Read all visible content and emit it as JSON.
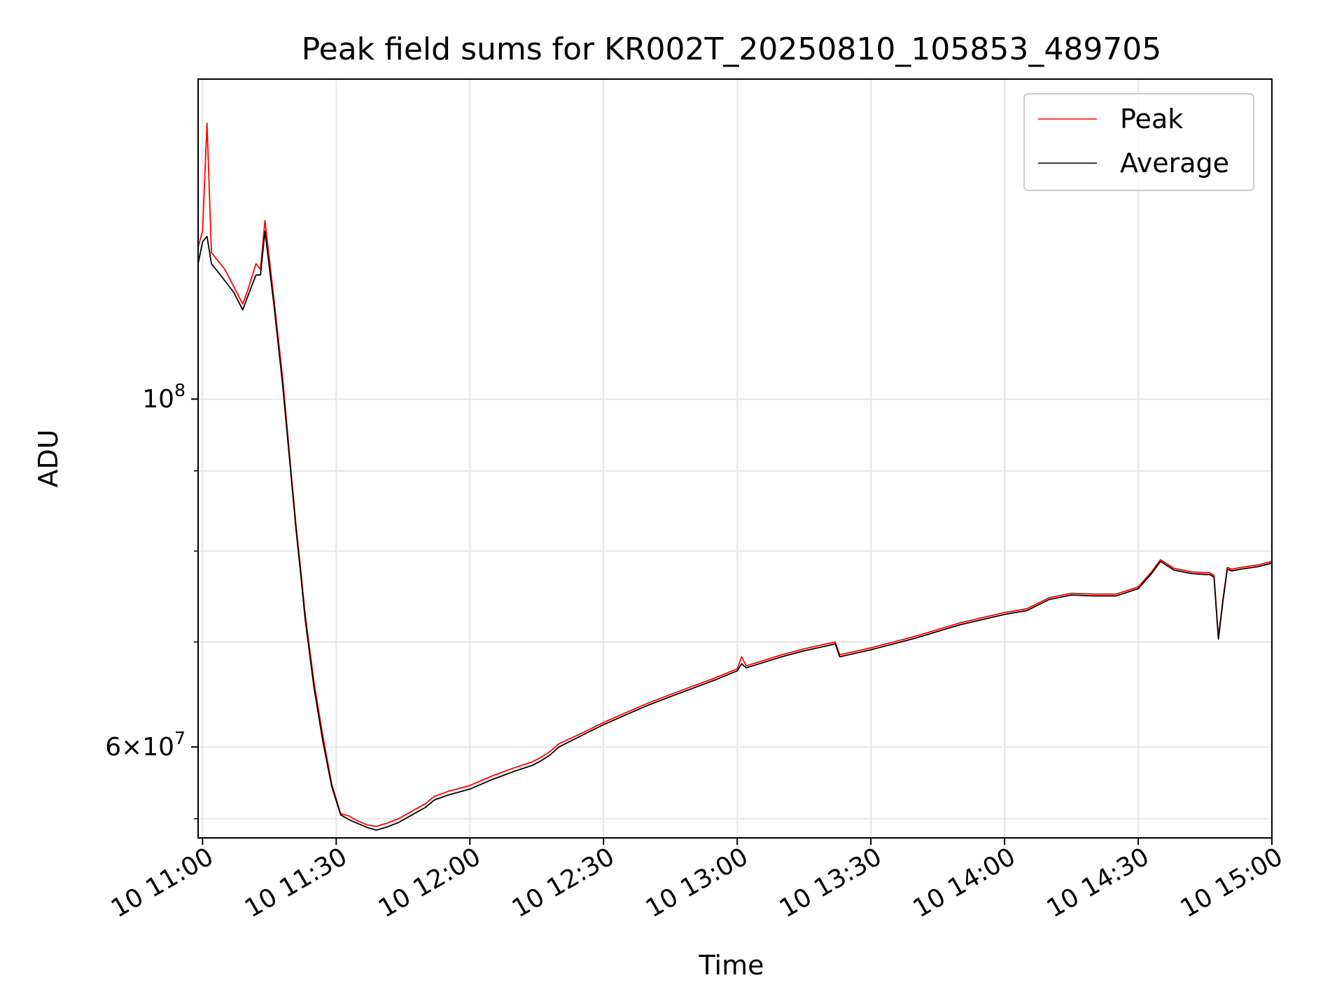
{
  "chart_data": {
    "type": "line",
    "title": "Peak field sums for KR002T_20250810_105853_489705",
    "xlabel": "Time",
    "ylabel": "ADU",
    "yscale": "log",
    "grid": true,
    "legend_placement": "upper right",
    "xlim": [
      "2025-08-10 10:59",
      "2025-08-10 15:00"
    ],
    "ylim": [
      52500000,
      160000000
    ],
    "x_ticks": [
      {
        "value": "2025-08-10 11:00",
        "label": "10 11:00"
      },
      {
        "value": "2025-08-10 11:30",
        "label": "10 11:30"
      },
      {
        "value": "2025-08-10 12:00",
        "label": "10 12:00"
      },
      {
        "value": "2025-08-10 12:30",
        "label": "10 12:30"
      },
      {
        "value": "2025-08-10 13:00",
        "label": "10 13:00"
      },
      {
        "value": "2025-08-10 13:30",
        "label": "10 13:30"
      },
      {
        "value": "2025-08-10 14:00",
        "label": "10 14:00"
      },
      {
        "value": "2025-08-10 14:30",
        "label": "10 14:30"
      },
      {
        "value": "2025-08-10 15:00",
        "label": "10 15:00"
      }
    ],
    "y_major_ticks": [
      {
        "value": 100000000,
        "base": "10",
        "exp": "8"
      },
      {
        "value": 60000000,
        "mant": "6",
        "base": "10",
        "exp": "7"
      }
    ],
    "y_minor_gridlines": [
      54000000,
      70000000,
      80000000,
      90000000
    ],
    "colors": {
      "Peak": "#ff0000",
      "Average": "#000000"
    },
    "series": [
      {
        "name": "Peak",
        "x": [
          "2025-08-10 10:59",
          "2025-08-10 11:00",
          "2025-08-10 11:01",
          "2025-08-10 11:02",
          "2025-08-10 11:03",
          "2025-08-10 11:05",
          "2025-08-10 11:07",
          "2025-08-10 11:09",
          "2025-08-10 11:10",
          "2025-08-10 11:12",
          "2025-08-10 11:13",
          "2025-08-10 11:14",
          "2025-08-10 11:16",
          "2025-08-10 11:18",
          "2025-08-10 11:20",
          "2025-08-10 11:21",
          "2025-08-10 11:22",
          "2025-08-10 11:23",
          "2025-08-10 11:25",
          "2025-08-10 11:27",
          "2025-08-10 11:29",
          "2025-08-10 11:31",
          "2025-08-10 11:33",
          "2025-08-10 11:35",
          "2025-08-10 11:37",
          "2025-08-10 11:39",
          "2025-08-10 11:41",
          "2025-08-10 11:44",
          "2025-08-10 11:47",
          "2025-08-10 11:50",
          "2025-08-10 11:52",
          "2025-08-10 11:55",
          "2025-08-10 12:00",
          "2025-08-10 12:05",
          "2025-08-10 12:10",
          "2025-08-10 12:14",
          "2025-08-10 12:16",
          "2025-08-10 12:18",
          "2025-08-10 12:20",
          "2025-08-10 12:25",
          "2025-08-10 12:30",
          "2025-08-10 12:35",
          "2025-08-10 12:40",
          "2025-08-10 12:45",
          "2025-08-10 12:50",
          "2025-08-10 12:55",
          "2025-08-10 13:00",
          "2025-08-10 13:01",
          "2025-08-10 13:02",
          "2025-08-10 13:05",
          "2025-08-10 13:10",
          "2025-08-10 13:15",
          "2025-08-10 13:20",
          "2025-08-10 13:22",
          "2025-08-10 13:23",
          "2025-08-10 13:30",
          "2025-08-10 13:40",
          "2025-08-10 13:50",
          "2025-08-10 14:00",
          "2025-08-10 14:05",
          "2025-08-10 14:10",
          "2025-08-10 14:15",
          "2025-08-10 14:20",
          "2025-08-10 14:25",
          "2025-08-10 14:30",
          "2025-08-10 14:33",
          "2025-08-10 14:35",
          "2025-08-10 14:38",
          "2025-08-10 14:42",
          "2025-08-10 14:45",
          "2025-08-10 14:46",
          "2025-08-10 14:47",
          "2025-08-10 14:48",
          "2025-08-10 14:49",
          "2025-08-10 14:50",
          "2025-08-10 14:51",
          "2025-08-10 14:53",
          "2025-08-10 14:57",
          "2025-08-10 15:00"
        ],
        "y": [
          125000000,
          128000000,
          150000000,
          124000000,
          123000000,
          121000000,
          118000000,
          115000000,
          117000000,
          122000000,
          121000000,
          130000000,
          116000000,
          103000000,
          89000000,
          83000000,
          78000000,
          73000000,
          66000000,
          61000000,
          56800000,
          54400000,
          54200000,
          53800000,
          53500000,
          53400000,
          53600000,
          54000000,
          54600000,
          55200000,
          55800000,
          56200000,
          56700000,
          57500000,
          58200000,
          58700000,
          59100000,
          59600000,
          60300000,
          61200000,
          62200000,
          63100000,
          64000000,
          64800000,
          65600000,
          66400000,
          67300000,
          68500000,
          67600000,
          68000000,
          68700000,
          69300000,
          69800000,
          70000000,
          68700000,
          69400000,
          70600000,
          72000000,
          73100000,
          73500000,
          74700000,
          75200000,
          75100000,
          75100000,
          75900000,
          77600000,
          79000000,
          78000000,
          77600000,
          77500000,
          77500000,
          77200000,
          70500000,
          74500000,
          78100000,
          77900000,
          78100000,
          78400000,
          78800000
        ]
      },
      {
        "name": "Average",
        "x": [
          "2025-08-10 10:59",
          "2025-08-10 11:00",
          "2025-08-10 11:01",
          "2025-08-10 11:02",
          "2025-08-10 11:03",
          "2025-08-10 11:05",
          "2025-08-10 11:07",
          "2025-08-10 11:09",
          "2025-08-10 11:10",
          "2025-08-10 11:12",
          "2025-08-10 11:13",
          "2025-08-10 11:14",
          "2025-08-10 11:16",
          "2025-08-10 11:18",
          "2025-08-10 11:20",
          "2025-08-10 11:21",
          "2025-08-10 11:22",
          "2025-08-10 11:23",
          "2025-08-10 11:25",
          "2025-08-10 11:27",
          "2025-08-10 11:29",
          "2025-08-10 11:31",
          "2025-08-10 11:33",
          "2025-08-10 11:35",
          "2025-08-10 11:37",
          "2025-08-10 11:39",
          "2025-08-10 11:41",
          "2025-08-10 11:44",
          "2025-08-10 11:47",
          "2025-08-10 11:50",
          "2025-08-10 11:52",
          "2025-08-10 11:55",
          "2025-08-10 12:00",
          "2025-08-10 12:05",
          "2025-08-10 12:10",
          "2025-08-10 12:14",
          "2025-08-10 12:16",
          "2025-08-10 12:18",
          "2025-08-10 12:20",
          "2025-08-10 12:25",
          "2025-08-10 12:30",
          "2025-08-10 12:35",
          "2025-08-10 12:40",
          "2025-08-10 12:45",
          "2025-08-10 12:50",
          "2025-08-10 12:55",
          "2025-08-10 13:00",
          "2025-08-10 13:01",
          "2025-08-10 13:02",
          "2025-08-10 13:05",
          "2025-08-10 13:10",
          "2025-08-10 13:15",
          "2025-08-10 13:20",
          "2025-08-10 13:22",
          "2025-08-10 13:23",
          "2025-08-10 13:30",
          "2025-08-10 13:40",
          "2025-08-10 13:50",
          "2025-08-10 14:00",
          "2025-08-10 14:05",
          "2025-08-10 14:10",
          "2025-08-10 14:15",
          "2025-08-10 14:20",
          "2025-08-10 14:25",
          "2025-08-10 14:30",
          "2025-08-10 14:33",
          "2025-08-10 14:35",
          "2025-08-10 14:38",
          "2025-08-10 14:42",
          "2025-08-10 14:45",
          "2025-08-10 14:46",
          "2025-08-10 14:47",
          "2025-08-10 14:48",
          "2025-08-10 14:49",
          "2025-08-10 14:50",
          "2025-08-10 14:51",
          "2025-08-10 14:53",
          "2025-08-10 14:57",
          "2025-08-10 15:00"
        ],
        "y": [
          122000000,
          126000000,
          127000000,
          122000000,
          121000000,
          119000000,
          117000000,
          114000000,
          116000000,
          120000000,
          120000000,
          128000000,
          115000000,
          102000000,
          88500000,
          82500000,
          77500000,
          72500000,
          65500000,
          60500000,
          56600000,
          54300000,
          53900000,
          53600000,
          53300000,
          53100000,
          53300000,
          53700000,
          54300000,
          54900000,
          55500000,
          55900000,
          56400000,
          57200000,
          57900000,
          58400000,
          58800000,
          59300000,
          60000000,
          61000000,
          62000000,
          62900000,
          63800000,
          64600000,
          65400000,
          66200000,
          67100000,
          67800000,
          67400000,
          67800000,
          68500000,
          69100000,
          69600000,
          69800000,
          68500000,
          69200000,
          70400000,
          71800000,
          72900000,
          73300000,
          74500000,
          75000000,
          74900000,
          74900000,
          75700000,
          77400000,
          78800000,
          77800000,
          77400000,
          77300000,
          77300000,
          77000000,
          70300000,
          74300000,
          77900000,
          77700000,
          77900000,
          78200000,
          78600000
        ]
      }
    ]
  }
}
